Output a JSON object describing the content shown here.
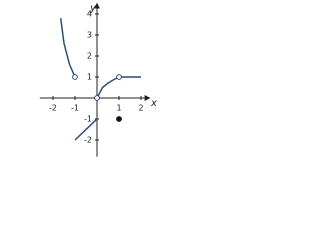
{
  "chart_data": {
    "type": "line",
    "x_label": "x",
    "y_label": "y",
    "xlim": [
      -2.6,
      2.3
    ],
    "ylim": [
      -2.8,
      4.4
    ],
    "xticks": [
      -2,
      -1,
      1,
      2
    ],
    "yticks": [
      -2,
      -1,
      1,
      2,
      3,
      4
    ],
    "color": "#2b4c73",
    "series": [
      {
        "x": [
          -1.65,
          -1.5,
          -1.25,
          -1
        ],
        "values": [
          3.8,
          2.6,
          1.6,
          1
        ]
      },
      {
        "x": [
          -1,
          0
        ],
        "values": [
          -2,
          -1
        ]
      },
      {
        "x": [
          0,
          0.25,
          0.5,
          0.75,
          1
        ],
        "values": [
          0,
          0.5,
          0.71,
          0.87,
          1
        ]
      },
      {
        "x": [
          1,
          2
        ],
        "values": [
          1,
          1
        ]
      }
    ],
    "points": [
      {
        "x": -1,
        "y": 1,
        "marker": "open"
      },
      {
        "x": 0,
        "y": 0,
        "marker": "open"
      },
      {
        "x": 1,
        "y": 1,
        "marker": "open"
      },
      {
        "x": 1,
        "y": -1,
        "marker": "filled"
      }
    ]
  }
}
